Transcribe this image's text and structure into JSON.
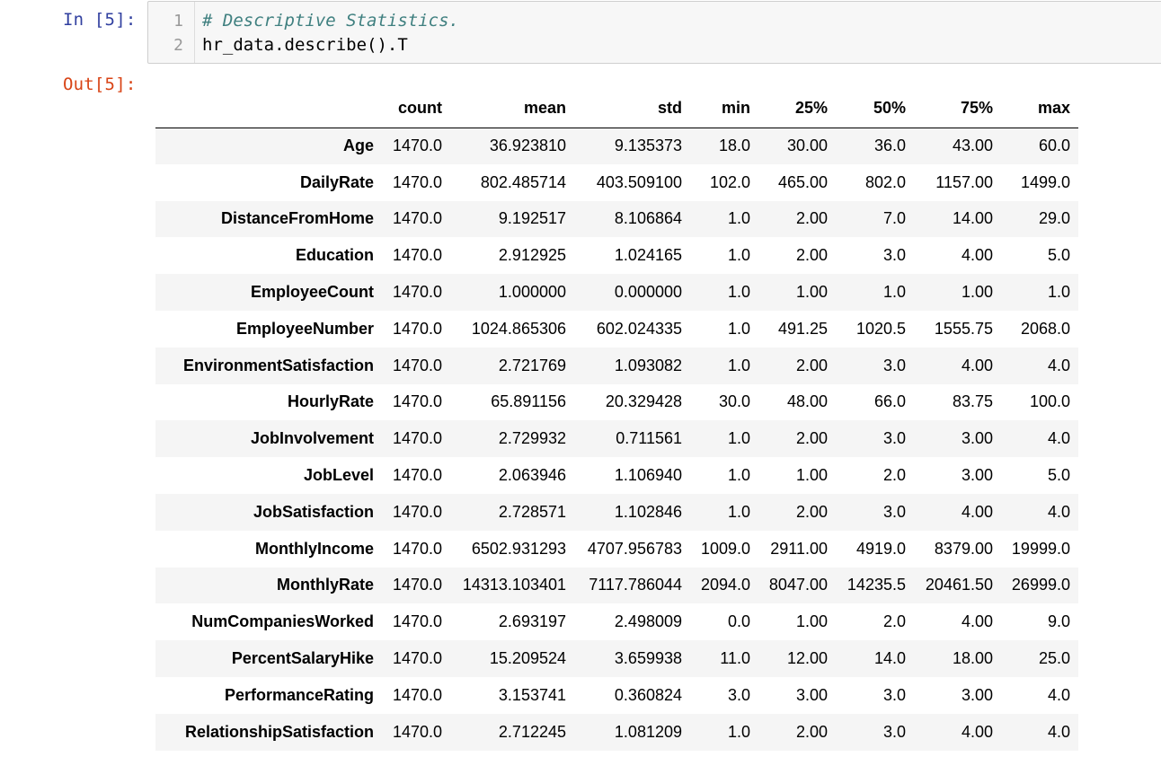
{
  "cell_in": {
    "prompt": "In [5]:",
    "line_numbers": [
      "1",
      "2"
    ],
    "comment": "# Descriptive Statistics.",
    "code": "hr_data.describe().T"
  },
  "cell_out": {
    "prompt": "Out[5]:",
    "table": {
      "corner": "",
      "columns": [
        "count",
        "mean",
        "std",
        "min",
        "25%",
        "50%",
        "75%",
        "max"
      ],
      "rows": [
        {
          "label": "Age",
          "values": [
            "1470.0",
            "36.923810",
            "9.135373",
            "18.0",
            "30.00",
            "36.0",
            "43.00",
            "60.0"
          ]
        },
        {
          "label": "DailyRate",
          "values": [
            "1470.0",
            "802.485714",
            "403.509100",
            "102.0",
            "465.00",
            "802.0",
            "1157.00",
            "1499.0"
          ]
        },
        {
          "label": "DistanceFromHome",
          "values": [
            "1470.0",
            "9.192517",
            "8.106864",
            "1.0",
            "2.00",
            "7.0",
            "14.00",
            "29.0"
          ]
        },
        {
          "label": "Education",
          "values": [
            "1470.0",
            "2.912925",
            "1.024165",
            "1.0",
            "2.00",
            "3.0",
            "4.00",
            "5.0"
          ]
        },
        {
          "label": "EmployeeCount",
          "values": [
            "1470.0",
            "1.000000",
            "0.000000",
            "1.0",
            "1.00",
            "1.0",
            "1.00",
            "1.0"
          ]
        },
        {
          "label": "EmployeeNumber",
          "values": [
            "1470.0",
            "1024.865306",
            "602.024335",
            "1.0",
            "491.25",
            "1020.5",
            "1555.75",
            "2068.0"
          ]
        },
        {
          "label": "EnvironmentSatisfaction",
          "values": [
            "1470.0",
            "2.721769",
            "1.093082",
            "1.0",
            "2.00",
            "3.0",
            "4.00",
            "4.0"
          ]
        },
        {
          "label": "HourlyRate",
          "values": [
            "1470.0",
            "65.891156",
            "20.329428",
            "30.0",
            "48.00",
            "66.0",
            "83.75",
            "100.0"
          ]
        },
        {
          "label": "JobInvolvement",
          "values": [
            "1470.0",
            "2.729932",
            "0.711561",
            "1.0",
            "2.00",
            "3.0",
            "3.00",
            "4.0"
          ]
        },
        {
          "label": "JobLevel",
          "values": [
            "1470.0",
            "2.063946",
            "1.106940",
            "1.0",
            "1.00",
            "2.0",
            "3.00",
            "5.0"
          ]
        },
        {
          "label": "JobSatisfaction",
          "values": [
            "1470.0",
            "2.728571",
            "1.102846",
            "1.0",
            "2.00",
            "3.0",
            "4.00",
            "4.0"
          ]
        },
        {
          "label": "MonthlyIncome",
          "values": [
            "1470.0",
            "6502.931293",
            "4707.956783",
            "1009.0",
            "2911.00",
            "4919.0",
            "8379.00",
            "19999.0"
          ]
        },
        {
          "label": "MonthlyRate",
          "values": [
            "1470.0",
            "14313.103401",
            "7117.786044",
            "2094.0",
            "8047.00",
            "14235.5",
            "20461.50",
            "26999.0"
          ]
        },
        {
          "label": "NumCompaniesWorked",
          "values": [
            "1470.0",
            "2.693197",
            "2.498009",
            "0.0",
            "1.00",
            "2.0",
            "4.00",
            "9.0"
          ]
        },
        {
          "label": "PercentSalaryHike",
          "values": [
            "1470.0",
            "15.209524",
            "3.659938",
            "11.0",
            "12.00",
            "14.0",
            "18.00",
            "25.0"
          ]
        },
        {
          "label": "PerformanceRating",
          "values": [
            "1470.0",
            "3.153741",
            "0.360824",
            "3.0",
            "3.00",
            "3.0",
            "3.00",
            "4.0"
          ]
        },
        {
          "label": "RelationshipSatisfaction",
          "values": [
            "1470.0",
            "2.712245",
            "1.081209",
            "1.0",
            "2.00",
            "3.0",
            "4.00",
            "4.0"
          ]
        }
      ]
    }
  },
  "colors": {
    "in_prompt": "#303f9f",
    "out_prompt": "#d84315",
    "comment": "#408080",
    "cell_background": "#f7f7f7",
    "cell_border": "#cfcfcf",
    "row_stripe": "#f5f5f5"
  }
}
